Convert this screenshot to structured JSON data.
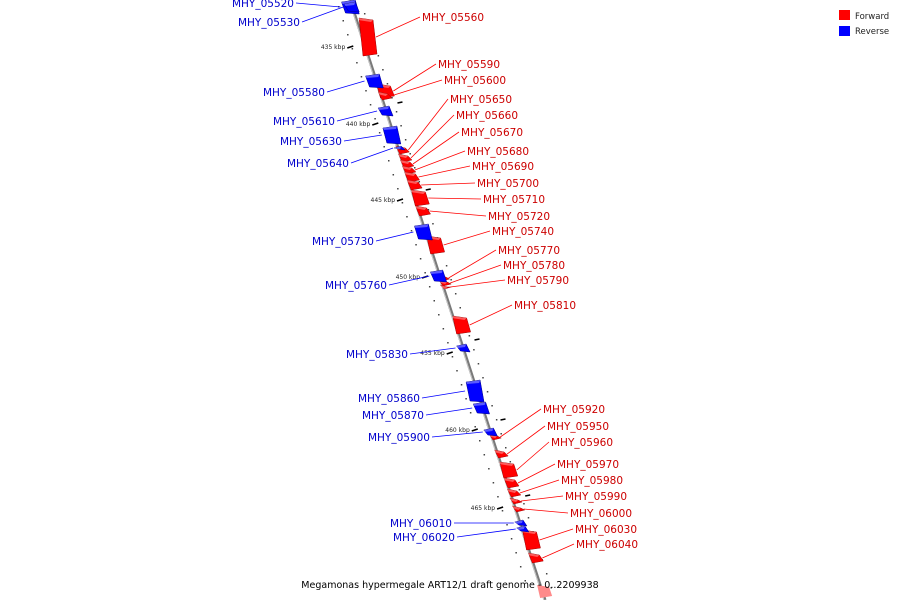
{
  "legend": {
    "forward_label": "Forward",
    "reverse_label": "Reverse",
    "forward_color": "#ff0000",
    "reverse_color": "#0000ff"
  },
  "caption": "Megamonas hypermegale ART12/1 draft genome - 0..2209938",
  "ticks": [
    "435 kbp",
    "440 kbp",
    "445 kbp",
    "450 kbp",
    "455 kbp",
    "460 kbp",
    "465 kbp"
  ],
  "forward_genes": [
    "MHY_05560",
    "MHY_05590",
    "MHY_05600",
    "MHY_05650",
    "MHY_05660",
    "MHY_05670",
    "MHY_05680",
    "MHY_05690",
    "MHY_05700",
    "MHY_05710",
    "MHY_05720",
    "MHY_05740",
    "MHY_05770",
    "MHY_05780",
    "MHY_05790",
    "MHY_05810",
    "MHY_05920",
    "MHY_05950",
    "MHY_05960",
    "MHY_05970",
    "MHY_05980",
    "MHY_05990",
    "MHY_06000",
    "MHY_06030",
    "MHY_06040"
  ],
  "reverse_genes": [
    "MHY_05520",
    "MHY_05530",
    "MHY_05580",
    "MHY_05610",
    "MHY_05630",
    "MHY_05640",
    "MHY_05730",
    "MHY_05760",
    "MHY_05830",
    "MHY_05860",
    "MHY_05870",
    "MHY_05900",
    "MHY_06010",
    "MHY_06020"
  ]
}
